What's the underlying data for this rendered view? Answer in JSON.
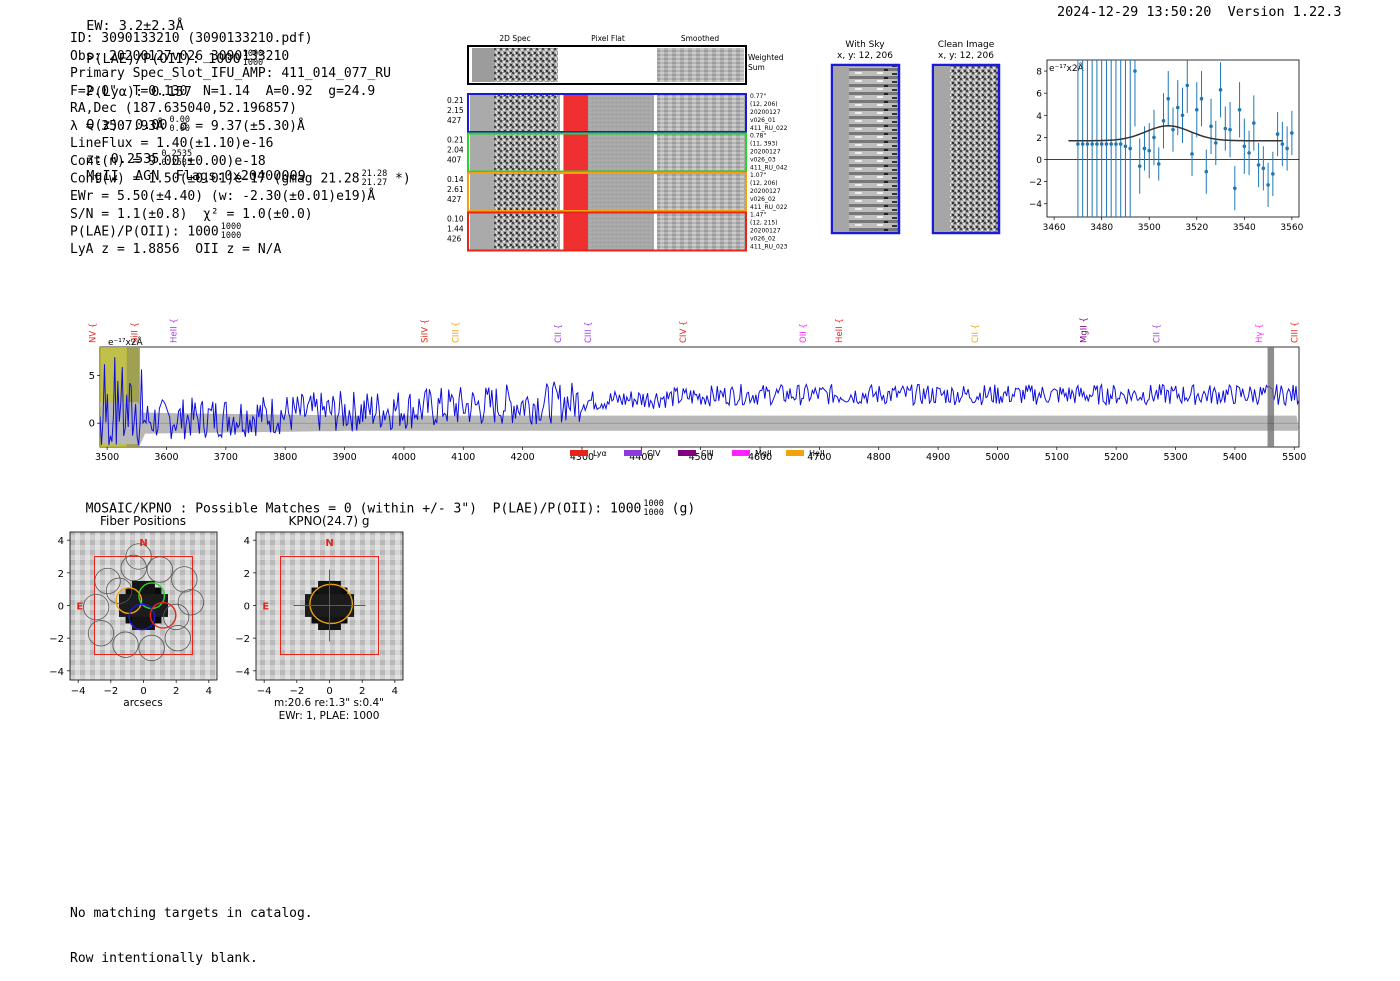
{
  "header": {
    "ew": "EW: 3.2±2.3Å",
    "plae_label": "P(LAE)/P(OII): 1000",
    "plae_hi": "1000",
    "plae_lo": "1000",
    "plya": "P(Lyα): 0.157",
    "qz": "Q(z): 0.00",
    "qz_hi": "0.00",
    "qz_lo": "0.00",
    "z": "z: 0.2535",
    "z_hi": "0.2535",
    "z_lo": "0.2535",
    "tail": "MgII  AGN  Flags:0x20400009",
    "timestamp": "2024-12-29 13:50:20  Version 1.22.3"
  },
  "info": {
    "id": "ID: 3090133210 (3090133210.pdf)",
    "obs": "Obs: 20200127v026_3090133210",
    "primary": "Primary Spec_Slot_IFU_AMP: 411_014_077_RU",
    "params": "F=2.0\"  T=0.130  N=1.14  A=0.92  g=24.9",
    "radec": "RA,Dec (187.635040,52.196857)",
    "lambda": "λ = 3507.93Å  σ = 9.37(±5.30)Å",
    "lineflux": "LineFlux = 1.40(±1.10)e-16",
    "contn": "Cont(n) = 9.00(±0.00)e-18",
    "contw": "Cont(w) = 1.50(±0.01)e-17 (gmag 21.28",
    "contw_hi": "21.28",
    "contw_lo": "21.27",
    "contw_tail": "*)",
    "ewr": "EWr = 5.50(±4.40) (w: -2.30(±0.01)e19)Å",
    "sn": "S/N = 1.1(±0.8)  χ² = 1.0(±0.0)",
    "plae": "P(LAE)/P(OII): 1000",
    "plae_hi": "1000",
    "plae_lo": "1000",
    "lya": "LyA z = 1.8856  OII z = N/A"
  },
  "cutouts": {
    "col_titles": [
      "2D Spec",
      "Pixel Flat",
      "Smoothed"
    ],
    "weighted_sum": [
      "Weighted",
      "Sum"
    ],
    "rows": [
      {
        "left": [
          "0.21",
          "2.15",
          "427"
        ],
        "right": [
          "0.77\"",
          "(12, 206)",
          "20200127",
          "v026_01",
          "411_RU_022"
        ],
        "color": "#1a1adb"
      },
      {
        "left": [
          "0.21",
          "2.04",
          "407"
        ],
        "right": [
          "0.78\"",
          "(11, 393)",
          "20200127",
          "v026_03",
          "411_RU_042"
        ],
        "color": "#2ad52a"
      },
      {
        "left": [
          "0.14",
          "2.61",
          "427"
        ],
        "right": [
          "1.07\"",
          "(12, 206)",
          "20200127",
          "v026_02",
          "411_RU_022"
        ],
        "color": "#f2a20c"
      },
      {
        "left": [
          "0.10",
          "1.44",
          "426"
        ],
        "right": [
          "1.47\"",
          "(12, 215)",
          "20200127",
          "v026_02",
          "411_RU_023"
        ],
        "color": "#e8241a"
      }
    ]
  },
  "sky": {
    "with_sky_title": "With Sky",
    "with_sky_sub": "x, y: 12, 206",
    "clean_title": "Clean Image",
    "clean_sub": "x, y: 12, 206"
  },
  "zoom_plot": {
    "unit_label": "e⁻¹⁷x2Å",
    "xticks": [
      "3460",
      "3480",
      "3500",
      "3520",
      "3540",
      "3560"
    ],
    "yticks": [
      "8",
      "6",
      "4",
      "2",
      "0",
      "−2",
      "−4"
    ]
  },
  "full_spectrum": {
    "unit_label": "e⁻¹⁷x2Å",
    "yticks": [
      "5",
      "0"
    ],
    "xticks": [
      "3500",
      "3600",
      "3700",
      "3800",
      "3900",
      "4000",
      "4100",
      "4200",
      "4300",
      "4400",
      "4500",
      "4600",
      "4700",
      "4800",
      "4900",
      "5000",
      "5100",
      "5200",
      "5300",
      "5400",
      "5500"
    ],
    "lines": [
      {
        "label": "NV",
        "x": 3475,
        "color": "#e8241a"
      },
      {
        "label": "SiII",
        "x": 3546,
        "color": "#e8241a"
      },
      {
        "label": "HeII",
        "x": 3612,
        "color": "#a040e0"
      },
      {
        "label": "SiIV",
        "x": 4035,
        "color": "#e8241a"
      },
      {
        "label": "CIII",
        "x": 4087,
        "color": "#f2a20c"
      },
      {
        "label": "CII",
        "x": 4260,
        "color": "#a040e0"
      },
      {
        "label": "CIII",
        "x": 4310,
        "color": "#a040e0"
      },
      {
        "label": "CIV",
        "x": 4470,
        "color": "#e8241a"
      },
      {
        "label": "OII",
        "x": 4672,
        "color": "#ff22ff"
      },
      {
        "label": "HeII",
        "x": 4733,
        "color": "#e8241a"
      },
      {
        "label": "CII",
        "x": 4962,
        "color": "#f2a20c"
      },
      {
        "label": "MgII",
        "x": 5145,
        "color": "#800080"
      },
      {
        "label": "CII",
        "x": 5268,
        "color": "#a040e0"
      },
      {
        "label": "Hγ",
        "x": 5441,
        "color": "#ff22ff"
      },
      {
        "label": "CIII",
        "x": 5500,
        "color": "#e8241a"
      }
    ],
    "legend": [
      {
        "label": "Lyα",
        "color": "#e8241a"
      },
      {
        "label": "CIV",
        "color": "#8a3ae0"
      },
      {
        "label": "CIII",
        "color": "#800080"
      },
      {
        "label": "MgII",
        "color": "#ff22ff"
      },
      {
        "label": "HeII",
        "color": "#f2a20c"
      }
    ]
  },
  "imaging": {
    "header": "MOSAIC/KPNO : Possible Matches = 0 (within +/- 3\")  P(LAE)/P(OII): 1000",
    "header_hi": "1000",
    "header_lo": "1000",
    "header_tail": "(g)",
    "fiber_title": "Fiber Positions",
    "kpno_title": "KPNO(24.7) g",
    "xlabel": "arcsecs",
    "ticks": [
      "4",
      "2",
      "0",
      "−2",
      "−4"
    ],
    "xticks": [
      "−4",
      "−2",
      "0",
      "2",
      "4"
    ],
    "north": "N",
    "east": "E",
    "kpno_info1": "m:20.6  re:1.3\"  s:0.4\"",
    "kpno_info2": "EWr: 1, PLAE: 1000"
  },
  "footer": {
    "line1": "No matching targets in catalog.",
    "line2": "Row intentionally blank."
  },
  "chart_data": [
    {
      "type": "scatter",
      "xlabel": "",
      "ylabel": "e⁻¹⁷x2Å",
      "xlim": [
        3457,
        3563
      ],
      "ylim": [
        -5.2,
        9
      ],
      "x": [
        3470,
        3472,
        3474,
        3476,
        3478,
        3480,
        3482,
        3484,
        3486,
        3488,
        3490,
        3492,
        3494,
        3496,
        3498,
        3500,
        3502,
        3504,
        3506,
        3508,
        3510,
        3512,
        3514,
        3516,
        3518,
        3520,
        3522,
        3524,
        3526,
        3528,
        3530,
        3532,
        3534,
        3536,
        3538,
        3540,
        3542,
        3544,
        3546,
        3548,
        3550,
        3552,
        3554,
        3556,
        3558,
        3560
      ],
      "y": [
        1.4,
        1.4,
        1.4,
        1.4,
        1.4,
        1.4,
        1.4,
        1.4,
        1.4,
        1.4,
        1.2,
        1.0,
        8.0,
        -0.6,
        1.0,
        0.8,
        2.0,
        -0.4,
        3.5,
        5.5,
        2.7,
        4.7,
        4.0,
        6.7,
        0.5,
        4.5,
        5.5,
        -1.1,
        3.0,
        1.5,
        6.3,
        2.8,
        2.7,
        -2.6,
        4.5,
        1.2,
        0.6,
        3.3,
        -0.5,
        -0.8,
        -2.3,
        -1.3,
        2.3,
        1.4,
        1.0,
        2.4
      ],
      "err": [
        20,
        20,
        20,
        20,
        20,
        20,
        20,
        20,
        20,
        20,
        20,
        20,
        5,
        2.5,
        2,
        2.5,
        2.5,
        1.5,
        2.5,
        2.5,
        2,
        2.5,
        2.5,
        2.5,
        2,
        2.5,
        2.5,
        2,
        2.5,
        2,
        2.5,
        2,
        2.5,
        2,
        2.5,
        2.5,
        2,
        2.5,
        2,
        2,
        2,
        2,
        2,
        2,
        2,
        2
      ],
      "fit": {
        "mu": 3508,
        "sigma": 9.37,
        "amp": 1.35,
        "base": 1.7
      }
    },
    {
      "type": "line",
      "xlabel": "",
      "ylabel": "e⁻¹⁷x2Å",
      "xlim": [
        3488,
        5508
      ],
      "ylim": [
        -2.5,
        8
      ],
      "series": [
        {
          "values": "noisy spectrum rising from ~0 to ~3"
        }
      ]
    }
  ]
}
